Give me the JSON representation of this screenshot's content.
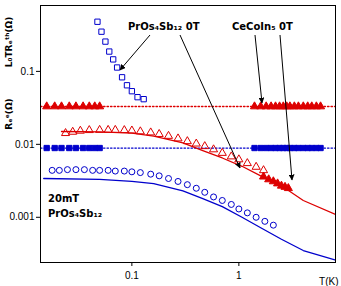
{
  "chart_data": {
    "type": "scatter",
    "log": true,
    "grid": false,
    "xlabel": "T(K)",
    "ylabel": [
      "L₀TRₑᵗʰ(Ω)",
      "Rₑᵉ(Ω)"
    ],
    "annotations": [
      "PrOs₄Sb₁₂ 0T",
      "CeCoIn₅ 0T",
      "20mT",
      "PrOs₄Sb₁₂"
    ],
    "xlim": [
      0.014,
      8
    ],
    "xticks": [
      0.1,
      1
    ],
    "ylim": [
      0.00024,
      0.8
    ],
    "yticks": [
      0.001,
      0.01,
      0.1
    ],
    "series": [
      {
        "type": "line",
        "color": "#0000cc",
        "line_style": "dotted",
        "x": [
          0.014,
          8
        ],
        "values": [
          0.0089,
          0.0089
        ]
      },
      {
        "type": "line",
        "color": "#dd0000",
        "line_style": "dotted",
        "x": [
          0.014,
          8
        ],
        "values": [
          0.033,
          0.033
        ]
      },
      {
        "type": "line",
        "color": "#dd0000",
        "line_style": "solid",
        "x": [
          0.022,
          0.05,
          0.1,
          0.16,
          0.3,
          0.46,
          0.7,
          1.07,
          1.6,
          2.5,
          4,
          7.9
        ],
        "values": [
          0.015,
          0.0148,
          0.0142,
          0.013,
          0.0105,
          0.0082,
          0.0065,
          0.005,
          0.0037,
          0.0027,
          0.0017,
          0.0011
        ]
      },
      {
        "type": "line",
        "color": "#0000cc",
        "line_style": "solid",
        "x": [
          0.015,
          0.05,
          0.1,
          0.16,
          0.3,
          0.46,
          0.7,
          1.07,
          1.6,
          2.5,
          4,
          7.9
        ],
        "values": [
          0.0034,
          0.0033,
          0.0031,
          0.0029,
          0.0023,
          0.0018,
          0.0014,
          0.001,
          0.00072,
          0.0005,
          0.00035,
          0.00026
        ]
      },
      {
        "type": "scatter",
        "color": "#0000cc",
        "marker": "open_square",
        "x": [
          0.0477,
          0.052,
          0.0566,
          0.0615,
          0.0669,
          0.0728,
          0.081,
          0.09,
          0.1,
          0.113,
          0.129
        ],
        "values": [
          0.479,
          0.35,
          0.256,
          0.187,
          0.146,
          0.113,
          0.083,
          0.0645,
          0.0535,
          0.0443,
          0.0416
        ]
      },
      {
        "type": "scatter",
        "color": "#0000cc",
        "marker": "square",
        "x": [
          0.016,
          0.019,
          0.022,
          0.026,
          0.03,
          0.035,
          0.04,
          0.045,
          0.05,
          1.4,
          1.6,
          1.8,
          2,
          2.2,
          2.4,
          2.6,
          2.8,
          3,
          3.3,
          3.6,
          4,
          4.4,
          4.8,
          5.3,
          5.8
        ],
        "values": [
          0.0089,
          0.0089,
          0.0089,
          0.0089,
          0.0089,
          0.0089,
          0.0089,
          0.0089,
          0.0089,
          0.0089,
          0.0089,
          0.0089,
          0.0089,
          0.0089,
          0.0089,
          0.0089,
          0.0089,
          0.0089,
          0.0089,
          0.0089,
          0.0089,
          0.0089,
          0.0089,
          0.0089,
          0.0089
        ]
      },
      {
        "type": "scatter",
        "color": "#dd0000",
        "marker": "triangle",
        "x": [
          0.016,
          0.019,
          0.022,
          0.026,
          0.03,
          0.035,
          0.04,
          0.045,
          0.05,
          1.4,
          1.6,
          1.8,
          2,
          2.2,
          2.4,
          2.6,
          2.8,
          3,
          3.3,
          3.6,
          4,
          4.4,
          4.8,
          5.3,
          5.8
        ],
        "values": [
          0.033,
          0.033,
          0.033,
          0.033,
          0.033,
          0.033,
          0.033,
          0.033,
          0.033,
          0.033,
          0.033,
          0.033,
          0.033,
          0.033,
          0.033,
          0.033,
          0.033,
          0.033,
          0.033,
          0.033,
          0.033,
          0.033,
          0.033,
          0.033,
          0.033
        ]
      },
      {
        "type": "scatter",
        "color": "#dd0000",
        "marker": "open_triangle",
        "x": [
          0.024,
          0.028,
          0.033,
          0.04,
          0.05,
          0.06,
          0.07,
          0.085,
          0.1,
          0.12,
          0.15,
          0.18,
          0.22,
          0.27,
          0.33,
          0.4,
          0.48,
          0.58,
          0.7,
          0.85,
          1.0,
          1.2,
          1.45,
          1.7
        ],
        "values": [
          0.0142,
          0.0148,
          0.0153,
          0.0156,
          0.0157,
          0.0157,
          0.0157,
          0.0156,
          0.0154,
          0.015,
          0.0145,
          0.0138,
          0.013,
          0.012,
          0.011,
          0.0102,
          0.0094,
          0.0085,
          0.0076,
          0.0068,
          0.0062,
          0.0055,
          0.0049,
          0.0044
        ]
      },
      {
        "type": "scatter",
        "color": "#dd0000",
        "marker": "triangle",
        "x": [
          1.7,
          1.9,
          2.1,
          2.3,
          2.5,
          2.7,
          2.9
        ],
        "values": [
          0.0036,
          0.0033,
          0.0031,
          0.0029,
          0.0027,
          0.0026,
          0.0025
        ]
      },
      {
        "type": "scatter",
        "color": "#0000cc",
        "marker": "open_circle",
        "x": [
          0.018,
          0.021,
          0.025,
          0.03,
          0.036,
          0.043,
          0.05,
          0.06,
          0.07,
          0.085,
          0.1,
          0.12,
          0.15,
          0.18,
          0.22,
          0.27,
          0.33,
          0.4,
          0.48,
          0.58,
          0.7,
          0.85,
          1.0,
          1.2,
          1.45,
          1.75,
          2.1
        ],
        "values": [
          0.0044,
          0.0044,
          0.0045,
          0.0045,
          0.0045,
          0.0044,
          0.0044,
          0.0044,
          0.0043,
          0.0043,
          0.0042,
          0.0041,
          0.0039,
          0.0037,
          0.0034,
          0.0031,
          0.0028,
          0.0025,
          0.0022,
          0.0019,
          0.0017,
          0.0015,
          0.0013,
          0.00115,
          0.001,
          0.00088,
          0.00078
        ]
      }
    ]
  }
}
